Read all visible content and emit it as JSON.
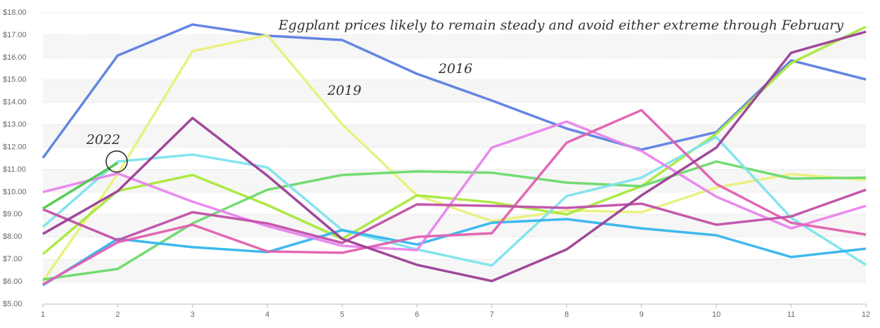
{
  "chart_data": {
    "type": "line",
    "annotations": [
      "Eggplant prices likely to remain steady and avoid either extreme through February"
    ],
    "x": [
      1,
      2,
      3,
      4,
      5,
      6,
      7,
      8,
      9,
      10,
      11,
      12
    ],
    "xlim": [
      1,
      12
    ],
    "xticks": [
      1,
      2,
      3,
      4,
      5,
      6,
      7,
      8,
      9,
      10,
      11,
      12
    ],
    "ylim": [
      5,
      18
    ],
    "yticks": [
      {
        "value": 5,
        "label": "$5.00"
      },
      {
        "value": 6,
        "label": "$6.00"
      },
      {
        "value": 7,
        "label": "$7.00"
      },
      {
        "value": 8,
        "label": "$8.00"
      },
      {
        "value": 9,
        "label": "$9.00"
      },
      {
        "value": 10,
        "label": "$10.00"
      },
      {
        "value": 11,
        "label": "$11.00"
      },
      {
        "value": 12,
        "label": "$12.00"
      },
      {
        "value": 13,
        "label": "$13.00"
      },
      {
        "value": 14,
        "label": "$14.00"
      },
      {
        "value": 15,
        "label": "$15.00"
      },
      {
        "value": 16,
        "label": "$16.00"
      },
      {
        "value": 17,
        "label": "$17.00"
      },
      {
        "value": 18,
        "label": "$18.00"
      }
    ],
    "grid": true,
    "series": [
      {
        "name": "2016",
        "color": "#5b7fe0",
        "values": [
          11.52,
          16.09,
          17.47,
          16.97,
          16.78,
          15.27,
          14.08,
          12.83,
          11.89,
          12.67,
          15.87,
          15.02
        ]
      },
      {
        "name": "2019",
        "color": "#e8f07a",
        "values": [
          6.03,
          10.8,
          16.28,
          17.0,
          13.02,
          9.85,
          8.7,
          9.17,
          9.1,
          10.2,
          10.8,
          10.54
        ]
      },
      {
        "color": "#a8e83a",
        "values": [
          7.23,
          10.05,
          10.76,
          9.42,
          7.91,
          9.85,
          9.54,
          9.0,
          10.26,
          12.6,
          15.75,
          17.37
        ]
      },
      {
        "color": "#6bd96b",
        "values": [
          6.1,
          6.57,
          8.6,
          10.1,
          10.76,
          10.92,
          10.86,
          10.42,
          10.26,
          11.36,
          10.6,
          10.64
        ]
      },
      {
        "color": "#7de3ec",
        "values": [
          8.44,
          11.36,
          11.67,
          11.1,
          8.3,
          7.44,
          6.72,
          9.82,
          10.64,
          12.45,
          8.85,
          6.75
        ]
      },
      {
        "color": "#33b5ec",
        "values": [
          5.84,
          7.91,
          7.54,
          7.32,
          8.3,
          7.66,
          8.63,
          8.79,
          8.38,
          8.07,
          7.1,
          7.47
        ]
      },
      {
        "color": "#e884ec",
        "values": [
          10.0,
          10.83,
          9.57,
          8.48,
          7.6,
          7.41,
          11.98,
          13.14,
          11.83,
          9.79,
          8.38,
          9.38
        ]
      },
      {
        "color": "#e060b0",
        "values": [
          5.88,
          7.76,
          8.54,
          7.35,
          7.29,
          8.0,
          8.16,
          12.2,
          13.65,
          10.36,
          8.63,
          8.1
        ]
      },
      {
        "color": "#c050a8",
        "values": [
          9.23,
          7.85,
          9.1,
          8.6,
          7.73,
          9.45,
          9.38,
          9.29,
          9.48,
          8.54,
          8.91,
          10.1
        ]
      },
      {
        "color": "#9b3f95",
        "values": [
          8.13,
          10.04,
          13.3,
          10.73,
          7.91,
          6.75,
          6.03,
          7.44,
          9.85,
          11.98,
          16.21,
          17.15
        ]
      },
      {
        "name": "2022",
        "color": "#4cc94c",
        "values": [
          9.26,
          11.3,
          null,
          null,
          null,
          null,
          null,
          null,
          null,
          null,
          null,
          null
        ]
      }
    ]
  }
}
